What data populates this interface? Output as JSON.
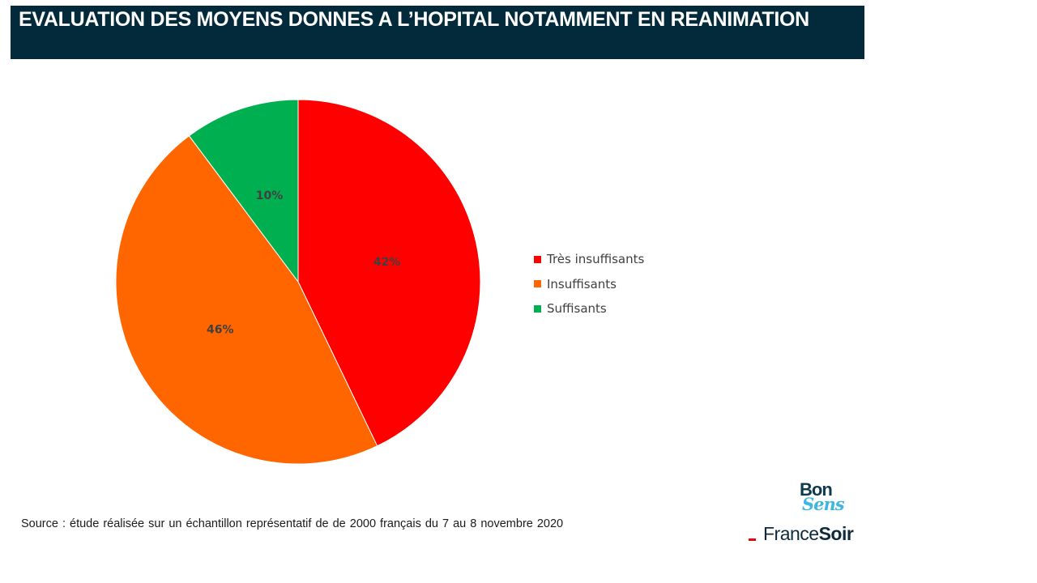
{
  "title": "EVALUATION DES MOYENS DONNES A L’HOPITAL NOTAMMENT EN REANIMATION",
  "chart_data": {
    "type": "pie",
    "categories": [
      "Très insuffisants",
      "Insuffisants",
      "Suffisants"
    ],
    "values": [
      42,
      46,
      10
    ],
    "data_labels": [
      "42%",
      "46%",
      "10%"
    ],
    "colors": [
      "#ff0000",
      "#ff6600",
      "#00b050"
    ],
    "start_angle": "12 o'clock, clockwise",
    "legend_position": "right"
  },
  "source": "Source : étude réalisée sur un échantillon représentatif de de 2000 français du 7 au 8 novembre 2020",
  "logo": {
    "bon": "Bon",
    "sens": "Sens",
    "france": "France",
    "soir": "Soir"
  }
}
